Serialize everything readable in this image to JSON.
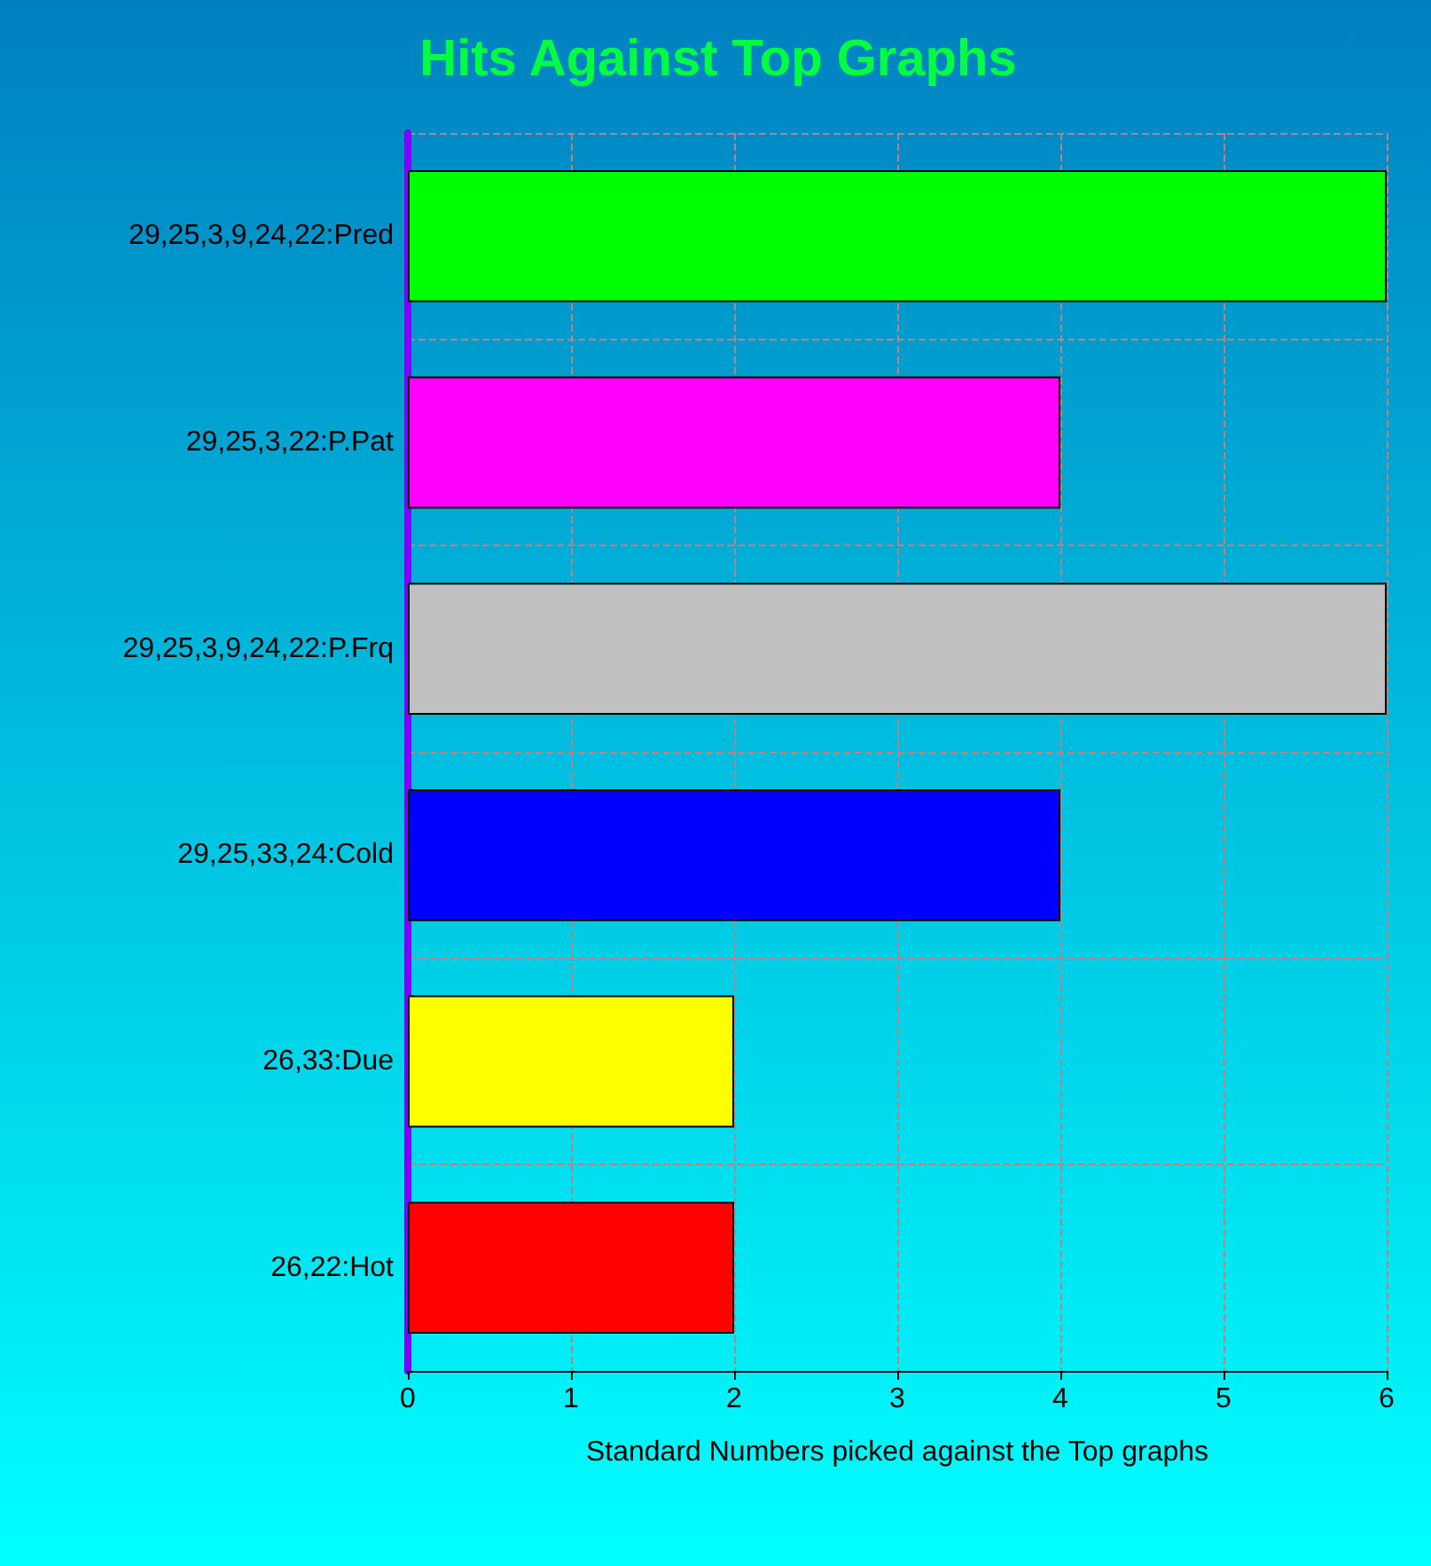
{
  "chart_data": {
    "type": "bar",
    "orientation": "horizontal",
    "title": "Hits Against Top Graphs",
    "xlabel": "Standard Numbers picked against the Top graphs",
    "categories": [
      "29,25,3,9,24,22:Pred",
      "29,25,3,22:P.Pat",
      "29,25,3,9,24,22:P.Frq",
      "29,25,33,24:Cold",
      "26,33:Due",
      "26,22:Hot"
    ],
    "values": [
      6,
      4,
      6,
      4,
      2,
      2
    ],
    "colors": [
      "#00ff00",
      "#ff00ff",
      "#c0c0c0",
      "#0000ff",
      "#ffff00",
      "#ff0000"
    ],
    "xlim": [
      0,
      6
    ],
    "xticks": [
      0,
      1,
      2,
      3,
      4,
      5,
      6
    ],
    "grid": true
  }
}
